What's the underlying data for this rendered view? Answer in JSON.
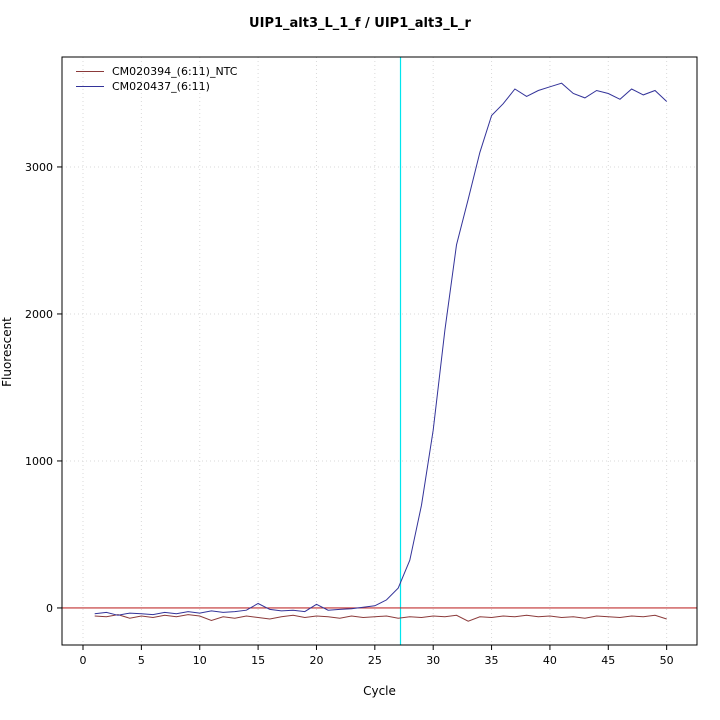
{
  "chart_data": {
    "type": "line",
    "title": "UIP1_alt3_L_1_f / UIP1_alt3_L_r",
    "xlabel": "Cycle",
    "ylabel": "Fluorescent",
    "x": [
      1,
      2,
      3,
      4,
      5,
      6,
      7,
      8,
      9,
      10,
      11,
      12,
      13,
      14,
      15,
      16,
      17,
      18,
      19,
      20,
      21,
      22,
      23,
      24,
      25,
      26,
      27,
      28,
      29,
      30,
      31,
      32,
      33,
      34,
      35,
      36,
      37,
      38,
      39,
      40,
      41,
      42,
      43,
      44,
      45,
      46,
      47,
      48,
      49,
      50
    ],
    "series": [
      {
        "name": "CM020394_(6:11)_NTC",
        "color": "#8b3a3a",
        "values": [
          -55,
          -60,
          -45,
          -70,
          -55,
          -65,
          -50,
          -60,
          -45,
          -55,
          -85,
          -60,
          -70,
          -55,
          -65,
          -75,
          -60,
          -50,
          -65,
          -55,
          -60,
          -70,
          -55,
          -65,
          -60,
          -55,
          -70,
          -60,
          -65,
          -55,
          -60,
          -50,
          -90,
          -60,
          -65,
          -55,
          -60,
          -50,
          -60,
          -55,
          -65,
          -60,
          -70,
          -55,
          -60,
          -65,
          -55,
          -60,
          -50,
          -75
        ]
      },
      {
        "name": "CM020437_(6:11)",
        "color": "#333399",
        "values": [
          -40,
          -30,
          -50,
          -35,
          -40,
          -45,
          -30,
          -40,
          -25,
          -35,
          -20,
          -30,
          -25,
          -15,
          30,
          -10,
          -20,
          -15,
          -25,
          25,
          -15,
          -10,
          -5,
          5,
          15,
          55,
          135,
          325,
          700,
          1210,
          1890,
          2470,
          2780,
          3100,
          3350,
          3430,
          3530,
          3480,
          3520,
          3545,
          3570,
          3500,
          3470,
          3520,
          3500,
          3460,
          3530,
          3490,
          3520,
          3445
        ]
      }
    ],
    "xlim": [
      -1.8,
      52.6
    ],
    "ylim": [
      -252,
      3748
    ],
    "xticks": [
      0,
      5,
      10,
      15,
      20,
      25,
      30,
      35,
      40,
      45,
      50
    ],
    "yticks": [
      0,
      1000,
      2000,
      3000
    ],
    "grid": true,
    "grid_color": "#d9d9d9",
    "threshold_y": 0,
    "threshold_color": "#c03030",
    "vline_x": 27.2,
    "vline_color": "#00e5ee",
    "legend_position": "top-left",
    "legend": [
      {
        "label": "CM020394_(6:11)_NTC",
        "color": "#8b3a3a"
      },
      {
        "label": "CM020437_(6:11)",
        "color": "#333399"
      }
    ]
  }
}
